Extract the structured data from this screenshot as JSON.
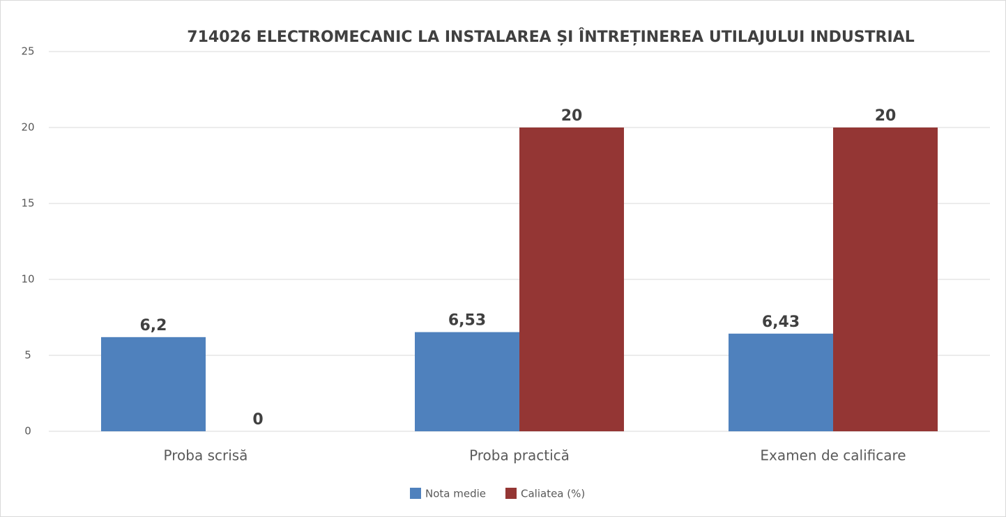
{
  "chart_data": {
    "type": "bar",
    "title": "714026  ELECTROMECANIC LA INSTALAREA ȘI ÎNTREȚINEREA UTILAJULUI INDUSTRIAL",
    "categories": [
      "Proba scrisă",
      "Proba practică",
      "Examen de calificare"
    ],
    "series": [
      {
        "name": "Nota medie",
        "color": "#4f81bd",
        "values": [
          6.2,
          6.53,
          6.43
        ],
        "value_labels": [
          "6,2",
          "6,53",
          "6,43"
        ]
      },
      {
        "name": "Caliatea (%)",
        "color": "#943634",
        "values": [
          0,
          20,
          20
        ]
      }
    ],
    "ylim": [
      0,
      25
    ],
    "yticks": [
      0,
      5,
      10,
      15,
      20,
      25
    ],
    "grid": true,
    "legend": "bottom"
  }
}
